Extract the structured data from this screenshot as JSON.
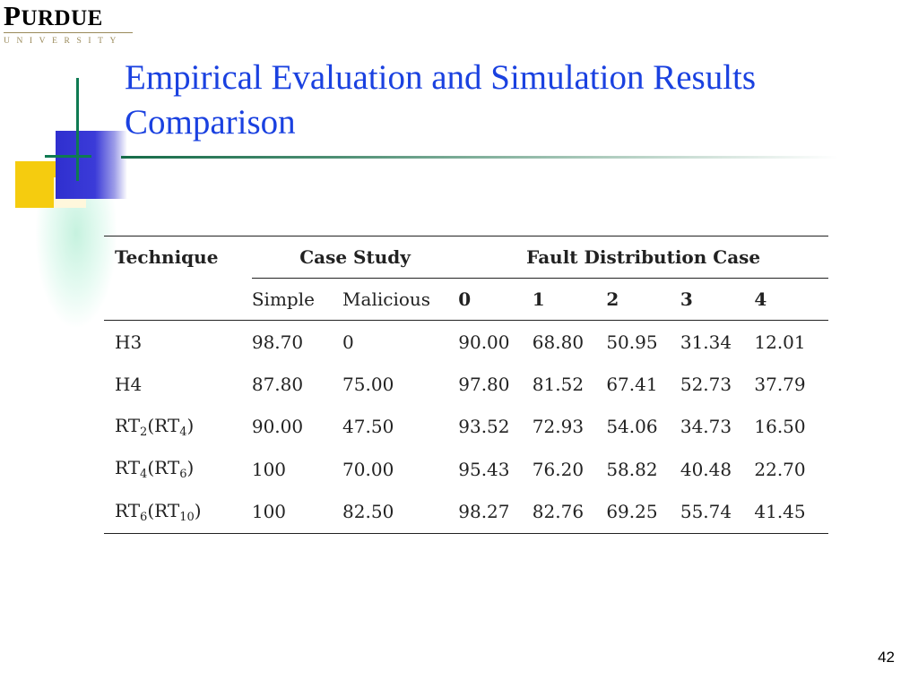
{
  "logo": {
    "name": "PURDUE",
    "university": "UNIVERSITY"
  },
  "title": "Empirical Evaluation and Simulation Results Comparison",
  "table": {
    "header_technique": "Technique",
    "header_case_study": "Case Study",
    "header_fault": "Fault Distribution Case",
    "sub_headers": [
      "Simple",
      "Malicious",
      "0",
      "1",
      "2",
      "3",
      "4"
    ],
    "rows": [
      {
        "technique": "H3",
        "values": [
          "98.70",
          "0",
          "90.00",
          "68.80",
          "50.95",
          "31.34",
          "12.01"
        ]
      },
      {
        "technique": "H4",
        "values": [
          "87.80",
          "75.00",
          "97.80",
          "81.52",
          "67.41",
          "52.73",
          "37.79"
        ]
      },
      {
        "technique": {
          "base": "RT",
          "sub": "2",
          "paren_base": "RT",
          "paren_sub": "4"
        },
        "values": [
          "90.00",
          "47.50",
          "93.52",
          "72.93",
          "54.06",
          "34.73",
          "16.50"
        ]
      },
      {
        "technique": {
          "base": "RT",
          "sub": "4",
          "paren_base": "RT",
          "paren_sub": "6"
        },
        "values": [
          "100",
          "70.00",
          "95.43",
          "76.20",
          "58.82",
          "40.48",
          "22.70"
        ]
      },
      {
        "technique": {
          "base": "RT",
          "sub": "6",
          "paren_base": "RT",
          "paren_sub": "10"
        },
        "values": [
          "100",
          "82.50",
          "98.27",
          "82.76",
          "69.25",
          "55.74",
          "41.45"
        ]
      }
    ]
  },
  "page_number": "42",
  "colors": {
    "title": "#1a41e0",
    "accent_green": "#0f7a52",
    "accent_blue": "#2f2fcf",
    "accent_yellow": "#f5cc0f"
  }
}
